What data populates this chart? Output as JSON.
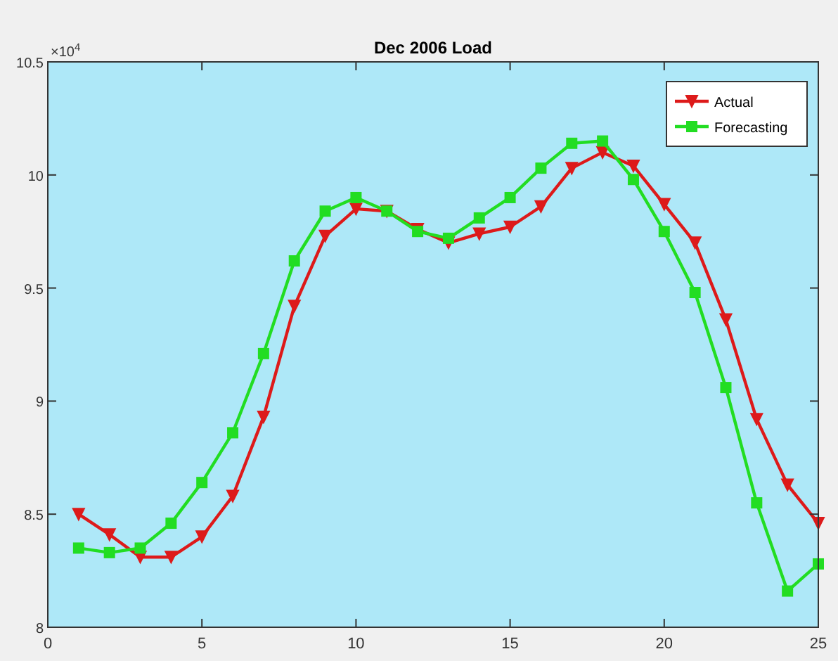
{
  "chart_data": {
    "type": "line",
    "title": "Dec 2006 Load",
    "annotations": [
      "×10$^{4}$"
    ],
    "x": [
      1,
      2,
      3,
      4,
      5,
      6,
      7,
      8,
      9,
      10,
      11,
      12,
      13,
      14,
      15,
      16,
      17,
      18,
      19,
      20,
      21,
      22,
      23,
      24,
      25
    ],
    "series": [
      {
        "name": "Actual",
        "color": "#dd1a1a",
        "marker": "triangle",
        "values": [
          8.5,
          8.41,
          8.31,
          8.31,
          8.4,
          8.58,
          8.93,
          9.42,
          9.73,
          9.85,
          9.84,
          9.76,
          9.7,
          9.74,
          9.77,
          9.86,
          10.03,
          10.1,
          10.04,
          9.87,
          9.7,
          9.36,
          8.92,
          8.63,
          8.46
        ]
      },
      {
        "name": "Forecasting",
        "color": "#22dd22",
        "marker": "square",
        "values": [
          8.35,
          8.33,
          8.35,
          8.46,
          8.64,
          8.86,
          9.21,
          9.62,
          9.84,
          9.9,
          9.84,
          9.75,
          9.72,
          9.81,
          9.9,
          10.03,
          10.14,
          10.15,
          9.98,
          9.75,
          9.48,
          9.06,
          8.55,
          8.16,
          8.28
        ]
      }
    ],
    "xlim": [
      0,
      25
    ],
    "xticks": [
      0,
      5,
      10,
      15,
      20,
      25
    ],
    "ylim": [
      8,
      10.5
    ],
    "yticks": [
      8,
      8.5,
      9,
      9.5,
      10,
      10.5
    ],
    "grid": false,
    "legend": "top right",
    "line_style": "solid"
  }
}
